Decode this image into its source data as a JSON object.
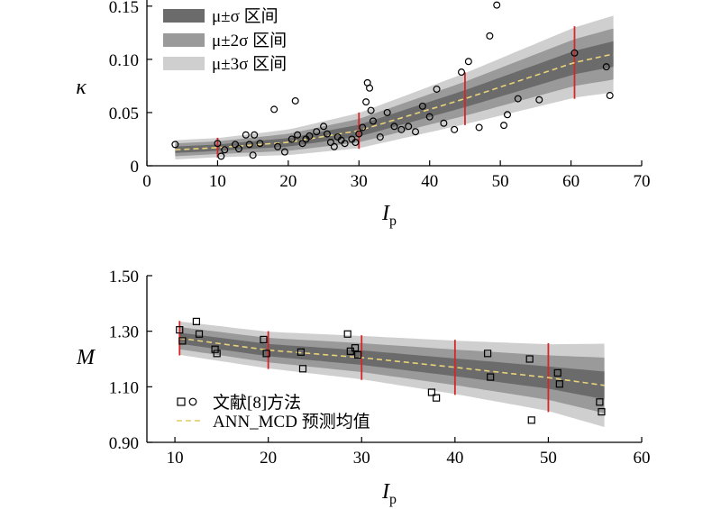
{
  "chart_data": [
    {
      "type": "scatter",
      "xlabel": "I",
      "xlabel_sub": "p",
      "ylabel": "κ",
      "xlim": [
        0,
        70
      ],
      "ylim": [
        0,
        0.16
      ],
      "xticks": [
        "0",
        "10",
        "20",
        "30",
        "40",
        "50",
        "60",
        "70"
      ],
      "yticks": [
        "0",
        "0.05",
        "0.10",
        "0.15"
      ],
      "legend": [
        "μ±σ 区间",
        "μ±2σ 区间",
        "μ±3σ 区间"
      ],
      "legend_placement": "top-left",
      "band_colors": [
        "#6b6b6b",
        "#9a9a9a",
        "#cfcfcf"
      ],
      "mean_color": "#e8d27a",
      "vline_color": "#d62728",
      "vlines": [
        10,
        30,
        45,
        60.5
      ],
      "mean_curve": {
        "x": [
          4,
          10,
          20,
          30,
          45,
          60.5,
          66
        ],
        "y": [
          0.015,
          0.017,
          0.022,
          0.033,
          0.063,
          0.097,
          0.105
        ]
      },
      "sigma_curve": {
        "x": [
          4,
          10,
          20,
          30,
          45,
          60.5,
          66
        ],
        "s": [
          0.003,
          0.003,
          0.004,
          0.0055,
          0.008,
          0.011,
          0.012
        ]
      },
      "points": {
        "x": [
          4,
          10,
          10.5,
          11,
          12.5,
          13,
          14,
          14.5,
          15,
          15.2,
          16,
          18,
          18.5,
          19.5,
          20.5,
          21,
          21.3,
          22,
          22.5,
          23,
          24,
          25,
          25.5,
          26,
          26.5,
          27,
          27.5,
          28,
          29,
          29.5,
          30,
          30.5,
          31,
          31.2,
          31.5,
          31.7,
          32,
          33,
          34,
          35,
          36,
          37,
          38,
          39,
          40,
          41,
          42,
          43.5,
          44.5,
          45.5,
          47,
          48.5,
          49.5,
          50.5,
          51,
          52.5,
          55.5,
          60.5,
          65,
          65.5
        ],
        "y": [
          0.02,
          0.021,
          0.009,
          0.015,
          0.02,
          0.016,
          0.029,
          0.02,
          0.01,
          0.029,
          0.021,
          0.053,
          0.018,
          0.013,
          0.025,
          0.061,
          0.029,
          0.021,
          0.025,
          0.028,
          0.032,
          0.037,
          0.03,
          0.022,
          0.018,
          0.027,
          0.024,
          0.021,
          0.025,
          0.022,
          0.03,
          0.036,
          0.06,
          0.078,
          0.073,
          0.052,
          0.042,
          0.027,
          0.05,
          0.037,
          0.034,
          0.037,
          0.032,
          0.056,
          0.046,
          0.072,
          0.04,
          0.034,
          0.088,
          0.098,
          0.036,
          0.122,
          0.151,
          0.038,
          0.048,
          0.063,
          0.062,
          0.106,
          0.093,
          0.066
        ],
        "marker": "circle"
      }
    },
    {
      "type": "scatter",
      "xlabel": "I",
      "xlabel_sub": "p",
      "ylabel": "M",
      "xlim": [
        7,
        60
      ],
      "ylim": [
        0.9,
        1.5
      ],
      "xticks": [
        "10",
        "20",
        "30",
        "40",
        "50",
        "60"
      ],
      "yticks": [
        "0.90",
        "1.10",
        "1.30",
        "1.50"
      ],
      "legend": [
        "文献[8]方法",
        "ANN_MCD 预测均值"
      ],
      "legend_placement": "bottom-left",
      "band_colors": [
        "#6b6b6b",
        "#9a9a9a",
        "#cfcfcf"
      ],
      "mean_color": "#e8d27a",
      "vline_color": "#d62728",
      "vlines": [
        10.5,
        20,
        30,
        40,
        50
      ],
      "mean_curve": {
        "x": [
          10.5,
          20,
          30,
          40,
          50,
          56
        ],
        "y": [
          1.275,
          1.232,
          1.205,
          1.17,
          1.133,
          1.105
        ]
      },
      "sigma_curve": {
        "x": [
          10.5,
          20,
          30,
          40,
          50,
          56
        ],
        "s": [
          0.02,
          0.022,
          0.026,
          0.032,
          0.04,
          0.05
        ]
      },
      "points": {
        "x": [
          10.5,
          10.8,
          12.3,
          12.6,
          14.3,
          14.5,
          19.5,
          19.8,
          23.5,
          23.7,
          28.5,
          28.8,
          29.3,
          29.6,
          37.5,
          38,
          43.5,
          43.8,
          48,
          48.2,
          51,
          51.2,
          55.5,
          55.7
        ],
        "y": [
          1.305,
          1.265,
          1.335,
          1.29,
          1.235,
          1.22,
          1.27,
          1.22,
          1.225,
          1.165,
          1.29,
          1.228,
          1.24,
          1.215,
          1.08,
          1.06,
          1.22,
          1.135,
          1.2,
          0.98,
          1.15,
          1.11,
          1.045,
          1.01
        ],
        "marker": "square"
      }
    }
  ]
}
